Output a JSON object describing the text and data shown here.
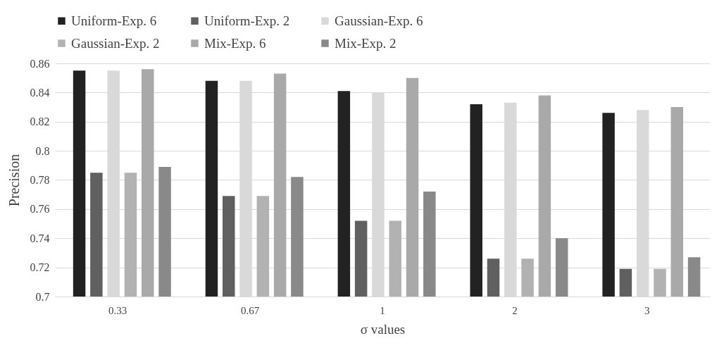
{
  "chart_data": {
    "type": "bar",
    "xlabel": "σ values",
    "ylabel": "Precision",
    "categories": [
      "0.33",
      "0.67",
      "1",
      "2",
      "3"
    ],
    "series": [
      {
        "name": "Uniform-Exp. 6",
        "color": "#222222",
        "values": [
          0.855,
          0.848,
          0.841,
          0.832,
          0.826
        ]
      },
      {
        "name": "Uniform-Exp. 2",
        "color": "#606060",
        "values": [
          0.785,
          0.769,
          0.752,
          0.726,
          0.719
        ]
      },
      {
        "name": "Gaussian-Exp. 6",
        "color": "#d9d9d9",
        "values": [
          0.855,
          0.848,
          0.84,
          0.833,
          0.828
        ]
      },
      {
        "name": "Gaussian-Exp. 2",
        "color": "#b2b2b2",
        "values": [
          0.785,
          0.769,
          0.752,
          0.726,
          0.719
        ]
      },
      {
        "name": "Mix-Exp. 6",
        "color": "#a9a9a9",
        "values": [
          0.856,
          0.853,
          0.85,
          0.838,
          0.83
        ]
      },
      {
        "name": "Mix-Exp. 2",
        "color": "#898989",
        "values": [
          0.789,
          0.782,
          0.772,
          0.74,
          0.727
        ]
      }
    ],
    "ylim": [
      0.7,
      0.86
    ],
    "yticks": [
      0.7,
      0.72,
      0.74,
      0.76,
      0.78,
      0.8,
      0.82,
      0.84,
      0.86
    ],
    "grid": "y",
    "legend": "top"
  }
}
